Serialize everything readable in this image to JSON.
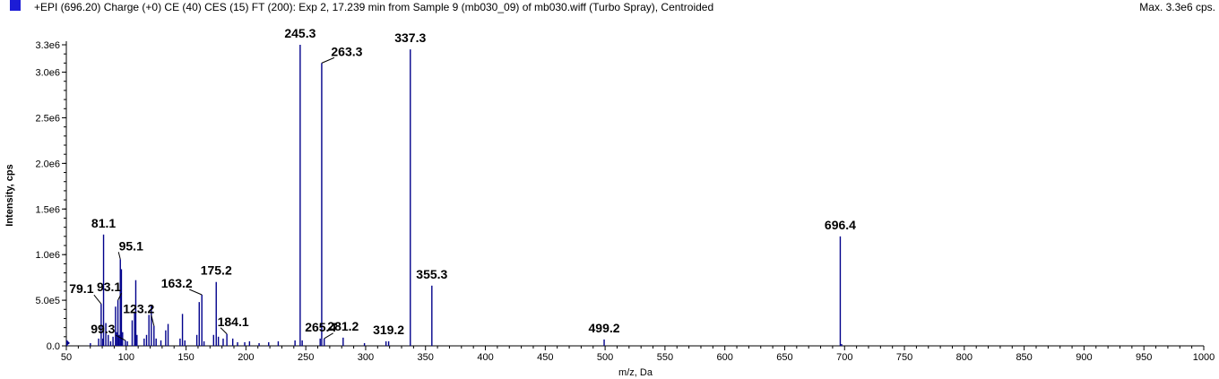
{
  "header": {
    "title": "+EPI (696.20) Charge (+0) CE (40) CES (15) FT (200): Exp 2, 17.239 min from Sample 9 (mb030_09) of mb030.wiff (Turbo Spray), Centroided",
    "max_label": "Max. 3.3e6 cps."
  },
  "colors": {
    "series": "#00008b",
    "legend_square": "#1c1cd6",
    "axis": "#000000"
  },
  "chart_data": {
    "type": "bar",
    "title": "+EPI (696.20) Charge (+0) CE (40) CES (15) FT (200): Exp 2, 17.239 min from Sample 9 (mb030_09) of mb030.wiff (Turbo Spray), Centroided",
    "xlabel": "m/z, Da",
    "ylabel": "Intensity, cps",
    "xlim": [
      50,
      1000
    ],
    "ylim": [
      0,
      3.3
    ],
    "y_unit_scale": 1000000,
    "xticks": [
      50,
      100,
      150,
      200,
      250,
      300,
      350,
      400,
      450,
      500,
      550,
      600,
      650,
      700,
      750,
      800,
      850,
      900,
      950,
      1000
    ],
    "xtick_labels": [
      "50",
      "100",
      "150",
      "200",
      "250",
      "300",
      "350",
      "400",
      "450",
      "500",
      "550",
      "600",
      "650",
      "700",
      "750",
      "800",
      "850",
      "900",
      "950",
      "1000"
    ],
    "yticks": [
      0,
      0.5,
      1.0,
      1.5,
      2.0,
      2.5,
      3.0,
      3.3
    ],
    "ytick_labels": [
      "0.0",
      "5.0e5",
      "1.0e6",
      "1.5e6",
      "2.0e6",
      "2.5e6",
      "3.0e6",
      "3.3e6"
    ],
    "peaks": [
      {
        "mz": 50.5,
        "i": 0.06
      },
      {
        "mz": 70.1,
        "i": 0.03
      },
      {
        "mz": 77.0,
        "i": 0.08
      },
      {
        "mz": 79.1,
        "i": 0.46,
        "label": "79.1"
      },
      {
        "mz": 80.5,
        "i": 0.08
      },
      {
        "mz": 81.1,
        "i": 1.22,
        "label": "81.1"
      },
      {
        "mz": 83.0,
        "i": 0.25
      },
      {
        "mz": 85.0,
        "i": 0.12
      },
      {
        "mz": 87.0,
        "i": 0.05
      },
      {
        "mz": 89.0,
        "i": 0.1
      },
      {
        "mz": 91.1,
        "i": 0.43
      },
      {
        "mz": 92.0,
        "i": 0.15
      },
      {
        "mz": 93.1,
        "i": 0.5,
        "label": "93.1"
      },
      {
        "mz": 94.0,
        "i": 0.12
      },
      {
        "mz": 95.1,
        "i": 0.95,
        "label": "95.1"
      },
      {
        "mz": 96.0,
        "i": 0.84
      },
      {
        "mz": 97.0,
        "i": 0.15
      },
      {
        "mz": 99.3,
        "i": 0.06,
        "label": "99.3"
      },
      {
        "mz": 101.0,
        "i": 0.05
      },
      {
        "mz": 105.0,
        "i": 0.28
      },
      {
        "mz": 107.0,
        "i": 0.36
      },
      {
        "mz": 108.0,
        "i": 0.72
      },
      {
        "mz": 109.0,
        "i": 0.12
      },
      {
        "mz": 115.0,
        "i": 0.08
      },
      {
        "mz": 117.0,
        "i": 0.12
      },
      {
        "mz": 119.0,
        "i": 0.34
      },
      {
        "mz": 121.0,
        "i": 0.45
      },
      {
        "mz": 123.2,
        "i": 0.22,
        "label": "123.2"
      },
      {
        "mz": 125.0,
        "i": 0.08
      },
      {
        "mz": 129.0,
        "i": 0.06
      },
      {
        "mz": 133.0,
        "i": 0.17
      },
      {
        "mz": 135.0,
        "i": 0.24
      },
      {
        "mz": 145.0,
        "i": 0.08
      },
      {
        "mz": 147.0,
        "i": 0.35
      },
      {
        "mz": 149.0,
        "i": 0.06
      },
      {
        "mz": 159.0,
        "i": 0.12
      },
      {
        "mz": 161.0,
        "i": 0.48
      },
      {
        "mz": 163.2,
        "i": 0.56,
        "label": "163.2"
      },
      {
        "mz": 165.0,
        "i": 0.05
      },
      {
        "mz": 173.0,
        "i": 0.12
      },
      {
        "mz": 175.2,
        "i": 0.7,
        "label": "175.2"
      },
      {
        "mz": 177.0,
        "i": 0.1
      },
      {
        "mz": 181.0,
        "i": 0.08
      },
      {
        "mz": 184.1,
        "i": 0.13,
        "label": "184.1"
      },
      {
        "mz": 189.0,
        "i": 0.08
      },
      {
        "mz": 193.0,
        "i": 0.04
      },
      {
        "mz": 199.0,
        "i": 0.04
      },
      {
        "mz": 203.0,
        "i": 0.05
      },
      {
        "mz": 211.0,
        "i": 0.03
      },
      {
        "mz": 219.0,
        "i": 0.04
      },
      {
        "mz": 227.0,
        "i": 0.05
      },
      {
        "mz": 241.0,
        "i": 0.06
      },
      {
        "mz": 245.3,
        "i": 3.3,
        "label": "245.3"
      },
      {
        "mz": 247.0,
        "i": 0.06
      },
      {
        "mz": 262.0,
        "i": 0.08
      },
      {
        "mz": 263.3,
        "i": 3.1,
        "label": "263.3"
      },
      {
        "mz": 265.4,
        "i": 0.08,
        "label": "265.4"
      },
      {
        "mz": 281.2,
        "i": 0.09,
        "label": "281.2"
      },
      {
        "mz": 299.0,
        "i": 0.03
      },
      {
        "mz": 317.0,
        "i": 0.05
      },
      {
        "mz": 319.2,
        "i": 0.05,
        "label": "319.2"
      },
      {
        "mz": 337.3,
        "i": 3.25,
        "label": "337.3"
      },
      {
        "mz": 355.3,
        "i": 0.66,
        "label": "355.3"
      },
      {
        "mz": 499.2,
        "i": 0.07,
        "label": "499.2"
      },
      {
        "mz": 696.4,
        "i": 1.2,
        "label": "696.4"
      },
      {
        "mz": 697.5,
        "i": 0.02
      }
    ]
  }
}
